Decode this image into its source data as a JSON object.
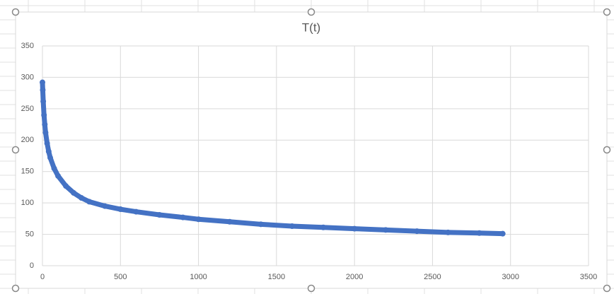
{
  "chart_data": {
    "type": "scatter",
    "title": "T(t)",
    "color": "#4472c4",
    "x": [
      0,
      2,
      5,
      10,
      15,
      20,
      30,
      40,
      50,
      75,
      100,
      150,
      200,
      250,
      300,
      400,
      500,
      600,
      750,
      900,
      1000,
      1200,
      1400,
      1600,
      1800,
      2000,
      2200,
      2400,
      2600,
      2800,
      2950
    ],
    "values": [
      292,
      280,
      262,
      240,
      225,
      212,
      195,
      182,
      172,
      155,
      143,
      127,
      116,
      108,
      102,
      95,
      90,
      86,
      81,
      77,
      74,
      70,
      66,
      63,
      61,
      59,
      57,
      55,
      53,
      52,
      51
    ],
    "xlim": [
      0,
      3500
    ],
    "xticks": [
      0,
      500,
      1000,
      1500,
      2000,
      2500,
      3000,
      3500
    ],
    "ylim": [
      0,
      350
    ],
    "yticks": [
      0,
      50,
      100,
      150,
      200,
      250,
      300,
      350
    ],
    "grid": true
  }
}
